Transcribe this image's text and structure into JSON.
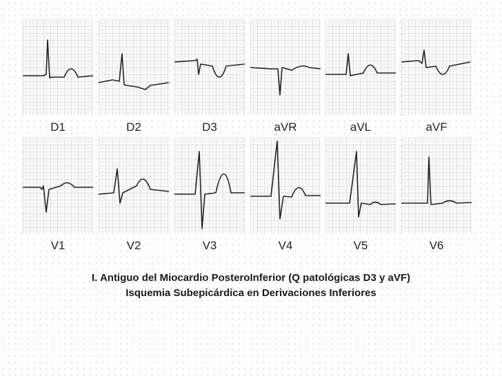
{
  "leads": [
    "D1",
    "D2",
    "D3",
    "aVR",
    "aVL",
    "aVF",
    "V1",
    "V2",
    "V3",
    "V4",
    "V5",
    "V6"
  ],
  "caption": {
    "line1": "I. Antiguo del Miocardio PosteroInferior (Q patológicas D3 y aVF)",
    "line2": "Isquemia Subepicárdica en Derivaciones Inferiores"
  }
}
